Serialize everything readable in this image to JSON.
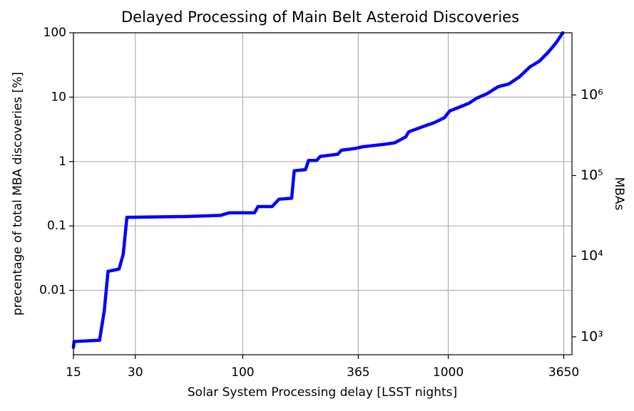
{
  "chart_data": {
    "type": "line",
    "title": "Delayed Processing of Main Belt Asteroid Discoveries",
    "x_label": "Solar System Processing delay [LSST nights]",
    "y_label": "precentage of total MBA discoveries [%]",
    "y2_label": "MBAs",
    "xscale": "log",
    "yscale": "log",
    "y2scale": "log",
    "grid": true,
    "xlim": [
      15,
      4000
    ],
    "ylim": [
      0.001,
      100
    ],
    "y2lim": [
      600,
      5900000
    ],
    "xticks": [
      15,
      30,
      100,
      365,
      1000,
      3650
    ],
    "yticks": [
      0.01,
      0.1,
      1,
      10,
      100
    ],
    "y2ticks": [
      {
        "value": 1000,
        "label": "10³"
      },
      {
        "value": 10000,
        "label": "10⁴"
      },
      {
        "value": 100000,
        "label": "10⁵"
      },
      {
        "value": 1000000,
        "label": "10⁶"
      }
    ],
    "x": [
      15,
      15.1,
      20.1,
      21.2,
      22.1,
      25.0,
      26.2,
      27.3,
      52.3,
      78.0,
      85.9,
      114,
      118.6,
      139,
      150,
      173,
      178,
      202,
      209,
      229,
      238,
      290,
      302,
      354,
      384,
      488,
      547,
      620,
      643,
      755,
      852,
      958,
      1016,
      1171,
      1267,
      1372,
      1543,
      1747,
      1970,
      2220,
      2500,
      2770,
      3050,
      3350,
      3610
    ],
    "series": [
      {
        "color": "#0000ff",
        "values": [
          0.0013,
          0.0016,
          0.00168,
          0.0049,
          0.0197,
          0.0214,
          0.0363,
          0.136,
          0.14,
          0.146,
          0.16,
          0.16,
          0.2,
          0.2,
          0.26,
          0.27,
          0.72,
          0.75,
          1.04,
          1.04,
          1.2,
          1.3,
          1.5,
          1.6,
          1.7,
          1.85,
          1.95,
          2.4,
          2.9,
          3.5,
          4.0,
          4.8,
          6.1,
          7.3,
          8.1,
          9.6,
          11.3,
          14.5,
          16,
          20.7,
          29.6,
          36,
          49,
          70,
          100
        ]
      }
    ]
  }
}
